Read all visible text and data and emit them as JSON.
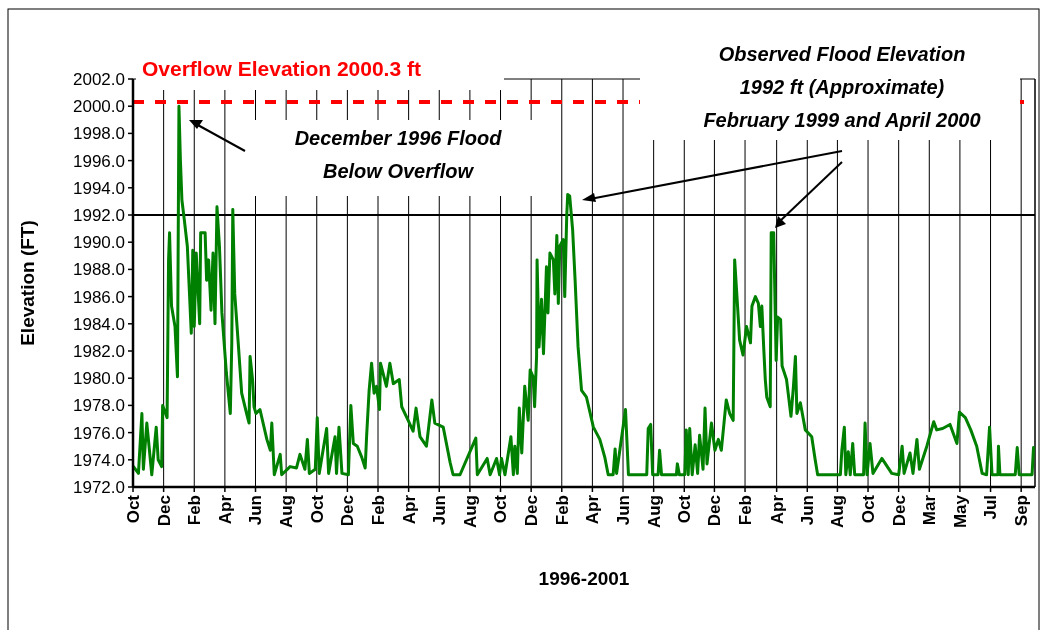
{
  "chart_data": {
    "type": "line",
    "xlabel": "1996-2001",
    "ylabel": "Elevation (FT)",
    "xlim": [
      "1996-10-01",
      "2001-10-01"
    ],
    "ylim": [
      1972,
      2002
    ],
    "xticks": [
      {
        "value": "1996-10-01",
        "label": "Oct"
      },
      {
        "value": "1996-12-02",
        "label": "Dec"
      },
      {
        "value": "1997-02-02",
        "label": "Feb"
      },
      {
        "value": "1997-04-05",
        "label": "Apr"
      },
      {
        "value": "1997-06-06",
        "label": "Jun"
      },
      {
        "value": "1997-08-07",
        "label": "Aug"
      },
      {
        "value": "1997-10-08",
        "label": "Oct"
      },
      {
        "value": "1997-12-09",
        "label": "Dec"
      },
      {
        "value": "1998-02-09",
        "label": "Feb"
      },
      {
        "value": "1998-04-12",
        "label": "Apr"
      },
      {
        "value": "1998-06-13",
        "label": "Jun"
      },
      {
        "value": "1998-08-14",
        "label": "Aug"
      },
      {
        "value": "1998-10-15",
        "label": "Oct"
      },
      {
        "value": "1998-12-16",
        "label": "Dec"
      },
      {
        "value": "1999-02-16",
        "label": "Feb"
      },
      {
        "value": "1999-04-19",
        "label": "Apr"
      },
      {
        "value": "1999-06-20",
        "label": "Jun"
      },
      {
        "value": "1999-08-21",
        "label": "Aug"
      },
      {
        "value": "1999-10-22",
        "label": "Oct"
      },
      {
        "value": "1999-12-22",
        "label": "Dec"
      },
      {
        "value": "2000-02-22",
        "label": "Feb"
      },
      {
        "value": "2000-04-26",
        "label": "Apr"
      },
      {
        "value": "2000-06-27",
        "label": "Jun"
      },
      {
        "value": "2000-08-27",
        "label": "Aug"
      },
      {
        "value": "2000-10-28",
        "label": "Oct"
      },
      {
        "value": "2000-12-29",
        "label": "Dec"
      },
      {
        "value": "2001-03-01",
        "label": "Mar"
      },
      {
        "value": "2001-05-02",
        "label": "May"
      },
      {
        "value": "2001-07-03",
        "label": "Jul"
      },
      {
        "value": "2001-09-03",
        "label": "Sep"
      }
    ],
    "yticks": [
      {
        "value": 1972,
        "label": "1972.0"
      },
      {
        "value": 1974,
        "label": "1974.0"
      },
      {
        "value": 1976,
        "label": "1976.0"
      },
      {
        "value": 1978,
        "label": "1978.0"
      },
      {
        "value": 1980,
        "label": "1980.0"
      },
      {
        "value": 1982,
        "label": "1982.0"
      },
      {
        "value": 1984,
        "label": "1984.0"
      },
      {
        "value": 1986,
        "label": "1986.0"
      },
      {
        "value": 1988,
        "label": "1988.0"
      },
      {
        "value": 1990,
        "label": "1990.0"
      },
      {
        "value": 1992,
        "label": "1992.0"
      },
      {
        "value": 1994,
        "label": "1994.0"
      },
      {
        "value": 1996,
        "label": "1996.0"
      },
      {
        "value": 1998,
        "label": "1998.0"
      },
      {
        "value": 2000,
        "label": "2000.0"
      },
      {
        "value": 2002,
        "label": "2002.0"
      }
    ],
    "grid": "x",
    "marker": "none",
    "line_style": "solid",
    "ref_lines": [
      {
        "axis": "y",
        "value": 2000.3,
        "label": "Overflow Elevation 2000.3 ft",
        "color": "#ff0000",
        "line_style": "dashed"
      },
      {
        "axis": "y",
        "value": 1992,
        "color": "#000000",
        "line_style": "solid"
      }
    ],
    "annotations": [
      "December 1996 Flood\nBelow Overflow",
      "Observed Flood Elevation\n1992 ft (Approximate)\nFebruary 1999 and April 2000"
    ],
    "series": [
      {
        "color": "#008000",
        "x": [
          "1996-10-02",
          "1996-10-12",
          "1996-10-19",
          "1996-10-22",
          "1996-10-29",
          "1996-11-08",
          "1996-11-17",
          "1996-11-21",
          "1996-11-28",
          "1996-11-30",
          "1996-12-09",
          "1996-12-12",
          "1996-12-14",
          "1996-12-18",
          "1996-12-25",
          "1996-12-30",
          "1997-01-02",
          "1997-01-05",
          "1997-01-08",
          "1997-01-13",
          "1997-01-19",
          "1997-01-27",
          "1997-01-30",
          "1997-02-02",
          "1997-02-06",
          "1997-02-13",
          "1997-02-15",
          "1997-02-24",
          "1997-02-27",
          "1997-03-03",
          "1997-03-08",
          "1997-03-12",
          "1997-03-16",
          "1997-03-20",
          "1997-03-25",
          "1997-03-30",
          "1997-04-08",
          "1997-04-16",
          "1997-04-19",
          "1997-04-21",
          "1997-04-25",
          "1997-05-02",
          "1997-05-09",
          "1997-05-19",
          "1997-05-24",
          "1997-05-26",
          "1997-05-31",
          "1997-06-03",
          "1997-06-07",
          "1997-06-15",
          "1997-06-29",
          "1997-07-06",
          "1997-07-09",
          "1997-07-14",
          "1997-07-26",
          "1997-07-29",
          "1997-08-15",
          "1997-08-28",
          "1997-09-04",
          "1997-09-14",
          "1997-09-19",
          "1997-09-23",
          "1997-10-05",
          "1997-10-09",
          "1997-10-13",
          "1997-10-28",
          "1997-11-01",
          "1997-11-14",
          "1997-11-17",
          "1997-11-22",
          "1997-11-28",
          "1997-12-11",
          "1997-12-16",
          "1997-12-21",
          "1997-12-29",
          "1998-01-07",
          "1998-01-14",
          "1998-01-17",
          "1998-01-22",
          "1998-01-27",
          "1998-02-01",
          "1998-02-06",
          "1998-02-12",
          "1998-02-14",
          "1998-02-26",
          "1998-03-05",
          "1998-03-12",
          "1998-03-24",
          "1998-03-29",
          "1998-04-11",
          "1998-04-21",
          "1998-04-27",
          "1998-05-05",
          "1998-05-18",
          "1998-05-29",
          "1998-06-04",
          "1998-06-21",
          "1998-07-05",
          "1998-07-11",
          "1998-07-25",
          "1998-08-26",
          "1998-08-29",
          "1998-09-18",
          "1998-09-24",
          "1998-10-07",
          "1998-10-13",
          "1998-10-17",
          "1998-10-24",
          "1998-11-05",
          "1998-11-10",
          "1998-11-13",
          "1998-11-18",
          "1998-11-22",
          "1998-11-27",
          "1998-12-03",
          "1998-12-10",
          "1998-12-14",
          "1998-12-20",
          "1998-12-23",
          "1998-12-27",
          "1998-12-28",
          "1999-01-01",
          "1999-01-06",
          "1999-01-10",
          "1999-01-16",
          "1999-01-19",
          "1999-01-23",
          "1999-01-30",
          "1999-02-02",
          "1999-02-06",
          "1999-02-09",
          "1999-02-12",
          "1999-02-19",
          "1999-02-22",
          "1999-02-26",
          "1999-02-28",
          "1999-03-04",
          "1999-03-10",
          "1999-03-15",
          "1999-03-21",
          "1999-03-28",
          "1999-04-07",
          "1999-04-21",
          "1999-05-04",
          "1999-05-14",
          "1999-05-21",
          "1999-05-31",
          "1999-06-04",
          "1999-06-07",
          "1999-06-25",
          "1999-07-01",
          "1999-08-07",
          "1999-08-10",
          "1999-08-15",
          "1999-08-19",
          "1999-08-30",
          "1999-09-02",
          "1999-09-06",
          "1999-10-06",
          "1999-10-08",
          "1999-10-12",
          "1999-10-23",
          "1999-10-26",
          "1999-10-30",
          "1999-11-02",
          "1999-11-07",
          "1999-11-13",
          "1999-11-18",
          "1999-11-22",
          "1999-11-29",
          "1999-12-03",
          "1999-12-07",
          "1999-12-16",
          "1999-12-23",
          "1999-12-30",
          "2000-01-05",
          "2000-01-15",
          "2000-01-22",
          "2000-01-29",
          "2000-02-01",
          "2000-02-06",
          "2000-02-11",
          "2000-02-18",
          "2000-02-25",
          "2000-03-04",
          "2000-03-07",
          "2000-03-14",
          "2000-03-20",
          "2000-03-24",
          "2000-03-27",
          "2000-03-31",
          "2000-04-03",
          "2000-04-06",
          "2000-04-13",
          "2000-04-15",
          "2000-04-20",
          "2000-04-25",
          "2000-04-28",
          "2000-05-04",
          "2000-05-07",
          "2000-05-16",
          "2000-05-25",
          "2000-05-30",
          "2000-06-03",
          "2000-06-06",
          "2000-06-13",
          "2000-06-23",
          "2000-07-06",
          "2000-07-13",
          "2000-07-18",
          "2000-09-02",
          "2000-09-05",
          "2000-09-10",
          "2000-09-13",
          "2000-09-18",
          "2000-09-22",
          "2000-09-27",
          "2000-10-01",
          "2000-10-19",
          "2000-10-22",
          "2000-10-26",
          "2000-11-01",
          "2000-11-07",
          "2000-11-25",
          "2000-12-15",
          "2000-12-29",
          "2001-01-05",
          "2001-01-09",
          "2001-01-21",
          "2001-01-27",
          "2001-02-04",
          "2001-02-09",
          "2001-02-24",
          "2001-03-10",
          "2001-03-16",
          "2001-03-28",
          "2001-04-12",
          "2001-04-26",
          "2001-05-01",
          "2001-05-13",
          "2001-05-24",
          "2001-06-05",
          "2001-06-16",
          "2001-06-25",
          "2001-07-01",
          "2001-07-06",
          "2001-07-18",
          "2001-07-19",
          "2001-07-22",
          "2001-08-22",
          "2001-08-26",
          "2001-08-30",
          "2001-09-25",
          "2001-09-28"
        ],
        "values": [
          1973.5,
          1973.0,
          1977.4,
          1973.3,
          1976.7,
          1972.9,
          1976.4,
          1974.0,
          1973.5,
          1978.0,
          1977.1,
          1988.7,
          1990.7,
          1985.3,
          1983.8,
          1980.1,
          2000.0,
          1996.0,
          1993.1,
          1991.6,
          1989.7,
          1983.3,
          1989.4,
          1983.8,
          1989.2,
          1984.0,
          1990.7,
          1990.7,
          1987.2,
          1988.7,
          1985.0,
          1989.2,
          1984.0,
          1992.6,
          1989.7,
          1984.8,
          1980.4,
          1977.4,
          1982.6,
          1992.4,
          1986.2,
          1982.6,
          1978.9,
          1977.4,
          1976.7,
          1981.6,
          1979.9,
          1977.9,
          1977.4,
          1977.7,
          1975.5,
          1974.7,
          1976.7,
          1972.9,
          1974.4,
          1972.9,
          1973.5,
          1973.4,
          1974.4,
          1973.3,
          1975.5,
          1973.0,
          1973.3,
          1977.1,
          1973.0,
          1976.3,
          1973.0,
          1975.7,
          1973.0,
          1976.4,
          1973.0,
          1972.9,
          1978.0,
          1975.2,
          1975.0,
          1974.2,
          1973.4,
          1975.8,
          1979.1,
          1981.1,
          1978.9,
          1979.4,
          1977.7,
          1981.1,
          1979.4,
          1981.1,
          1979.6,
          1979.9,
          1977.9,
          1976.9,
          1976.1,
          1977.8,
          1975.7,
          1975.0,
          1978.4,
          1976.7,
          1976.4,
          1973.8,
          1972.9,
          1972.9,
          1975.6,
          1972.9,
          1974.1,
          1972.9,
          1974.1,
          1972.9,
          1974.1,
          1972.9,
          1975.7,
          1972.9,
          1975.0,
          1973.0,
          1977.8,
          1974.5,
          1979.4,
          1976.9,
          1980.6,
          1980.1,
          1977.9,
          1981.6,
          1988.7,
          1982.3,
          1985.8,
          1981.8,
          1988.2,
          1984.8,
          1989.2,
          1988.7,
          1986.2,
          1990.5,
          1985.5,
          1989.7,
          1990.2,
          1986.0,
          1991.9,
          1993.5,
          1993.4,
          1990.9,
          1987.2,
          1982.3,
          1979.1,
          1978.6,
          1976.4,
          1975.5,
          1974.2,
          1972.9,
          1972.9,
          1974.8,
          1973.0,
          1977.7,
          1972.9,
          1972.9,
          1976.3,
          1976.6,
          1972.9,
          1972.9,
          1974.7,
          1972.9,
          1972.9,
          1973.7,
          1972.9,
          1972.9,
          1976.2,
          1972.9,
          1976.3,
          1972.9,
          1975.1,
          1973.0,
          1975.8,
          1973.3,
          1977.8,
          1973.7,
          1976.7,
          1974.7,
          1975.5,
          1974.7,
          1978.4,
          1977.4,
          1976.9,
          1988.7,
          1985.8,
          1982.8,
          1981.7,
          1983.8,
          1982.6,
          1985.3,
          1986.0,
          1985.5,
          1983.8,
          1985.3,
          1982.1,
          1979.9,
          1978.6,
          1977.9,
          1990.7,
          1990.7,
          1981.3,
          1984.5,
          1984.3,
          1980.9,
          1979.9,
          1977.2,
          1979.4,
          1981.6,
          1977.4,
          1978.2,
          1976.2,
          1975.7,
          1974.0,
          1972.9,
          1972.9,
          1974.7,
          1976.4,
          1972.9,
          1974.6,
          1972.9,
          1975.2,
          1972.9,
          1972.9,
          1976.7,
          1972.9,
          1975.2,
          1973.0,
          1974.1,
          1973.0,
          1972.9,
          1975.0,
          1973.0,
          1974.5,
          1973.0,
          1975.5,
          1973.3,
          1975.0,
          1976.8,
          1976.2,
          1976.3,
          1976.6,
          1975.2,
          1977.5,
          1977.1,
          1976.2,
          1975.0,
          1973.0,
          1972.9,
          1976.4,
          1972.9,
          1972.9,
          1975.0,
          1972.9,
          1972.9,
          1974.9,
          1972.9,
          1972.9,
          1974.9
        ]
      }
    ]
  }
}
